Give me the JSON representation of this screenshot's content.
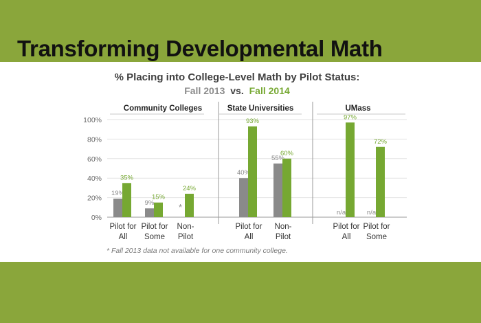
{
  "banner": {
    "title": "Transforming Developmental Math"
  },
  "chart_data": {
    "type": "bar",
    "title": "% Placing into College-Level Math by Pilot Status:",
    "subtitle": {
      "fall2013": "Fall 2013",
      "vs": "vs.",
      "fall2014": "Fall 2014"
    },
    "yticks": [
      "0%",
      "20%",
      "40%",
      "60%",
      "80%",
      "100%"
    ],
    "ylim": [
      0,
      100
    ],
    "footnote": "* Fall 2013 data not available for one community college.",
    "colors": {
      "fall2013": "#8a8a8a",
      "fall2014": "#76a832",
      "title": "#404040"
    },
    "groups": [
      {
        "name": "Community Colleges",
        "categories": [
          {
            "label_lines": [
              "Pilot for",
              "All"
            ],
            "fall2013": 19,
            "fall2013_label": "19%",
            "fall2014": 35,
            "fall2014_label": "35%"
          },
          {
            "label_lines": [
              "Pilot for",
              "Some"
            ],
            "fall2013": 9,
            "fall2013_label": "9%",
            "fall2014": 15,
            "fall2014_label": "15%"
          },
          {
            "label_lines": [
              "Non-",
              "Pilot"
            ],
            "fall2013": null,
            "fall2013_label": "*",
            "fall2014": 24,
            "fall2014_label": "24%"
          }
        ]
      },
      {
        "name": "State Universities",
        "categories": [
          {
            "label_lines": [
              "Pilot for",
              "All"
            ],
            "fall2013": 40,
            "fall2013_label": "40%",
            "fall2014": 93,
            "fall2014_label": "93%"
          },
          {
            "label_lines": [
              "Non-",
              "Pilot"
            ],
            "fall2013": 55,
            "fall2013_label": "55%",
            "fall2014": 60,
            "fall2014_label": "60%"
          }
        ]
      },
      {
        "name": "UMass",
        "categories": [
          {
            "label_lines": [
              "Pilot for",
              "All"
            ],
            "fall2013": null,
            "fall2013_label": "n/a",
            "fall2014": 97,
            "fall2014_label": "97%"
          },
          {
            "label_lines": [
              "Pilot for",
              "Some"
            ],
            "fall2013": null,
            "fall2013_label": "n/a",
            "fall2014": 72,
            "fall2014_label": "72%"
          }
        ]
      }
    ]
  }
}
